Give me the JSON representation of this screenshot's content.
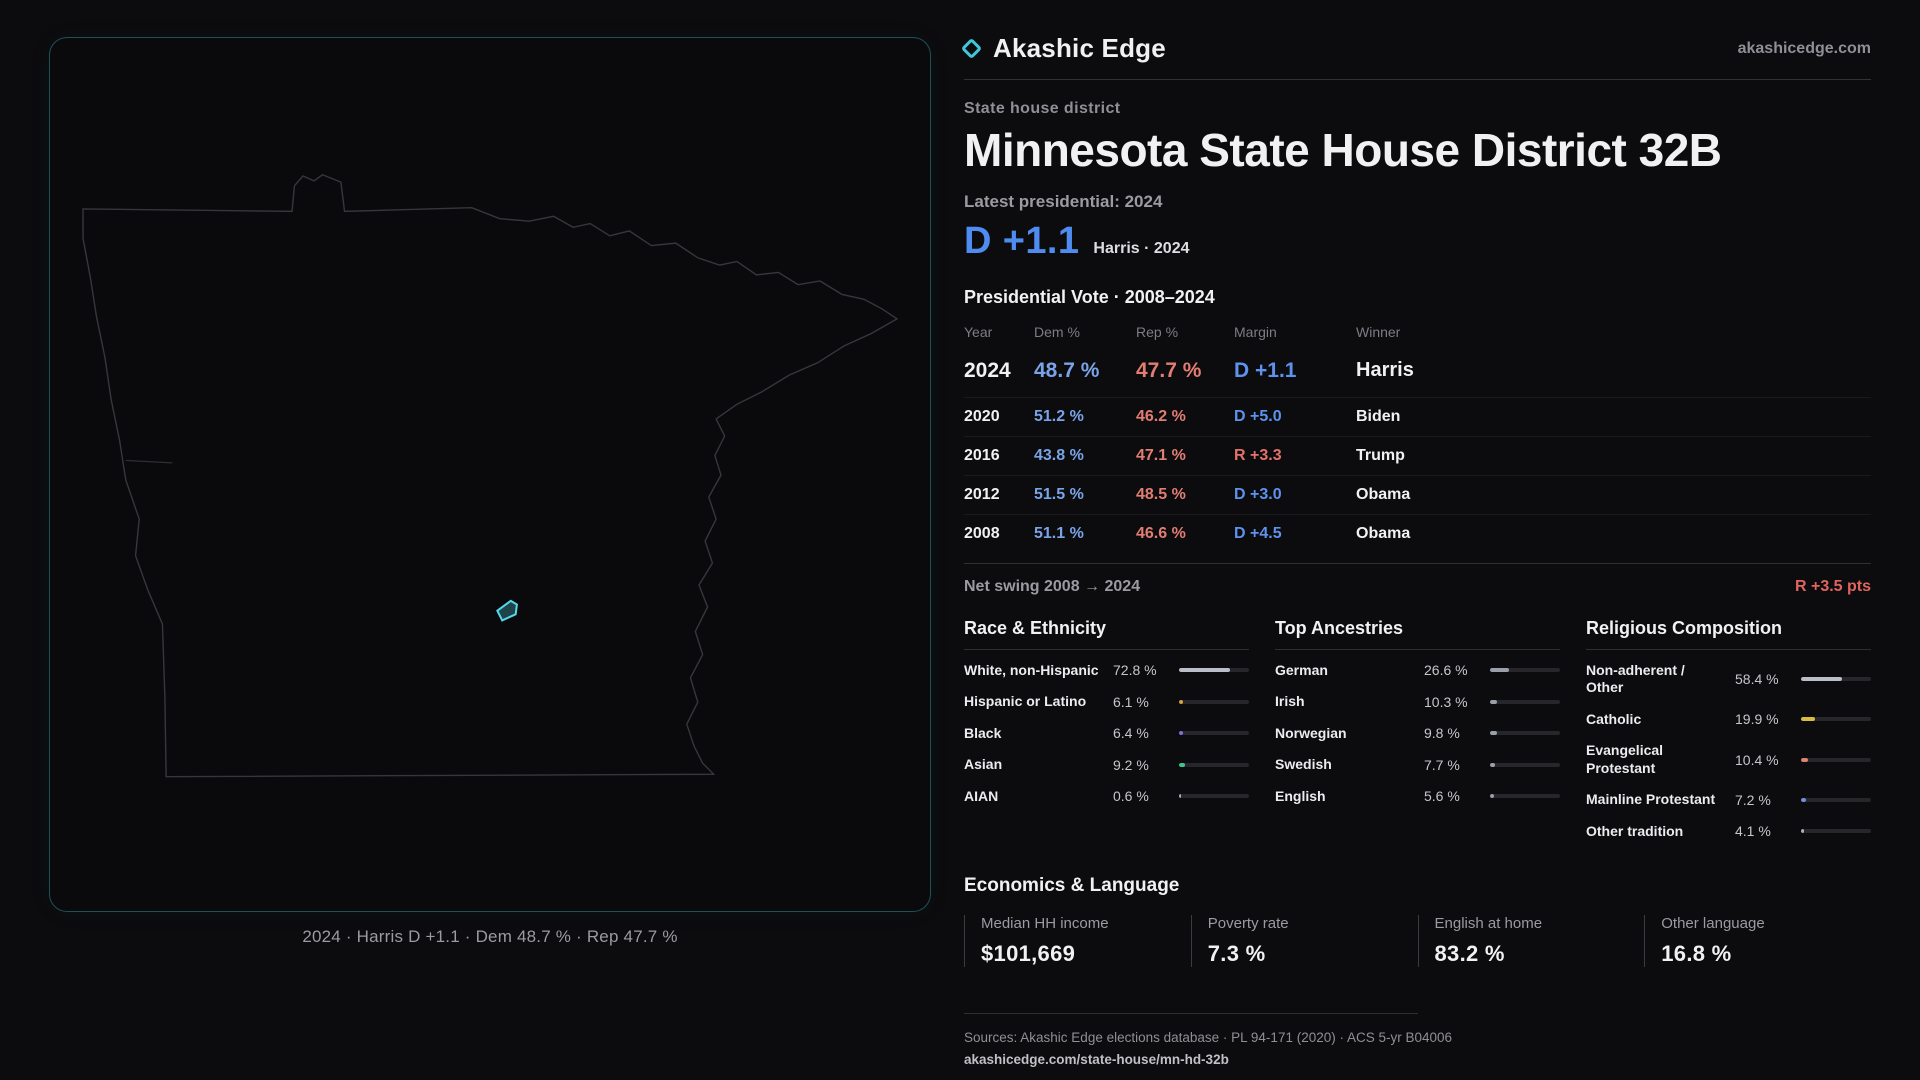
{
  "colors": {
    "background": "#0c0b0d",
    "dem_blue": "#5d93ee",
    "rep_red": "#e2726b",
    "accent_teal": "#3fc6da"
  },
  "map": {
    "caption": "2024 · Harris D +1.1 · Dem 48.7 % · Rep 47.7 %"
  },
  "header": {
    "brand": "Akashic Edge",
    "site": "akashicedge.com",
    "kicker": "State house district",
    "title": "Minnesota State House District 32B",
    "latest": "Latest presidential: 2024",
    "margin_value": "D +1.1",
    "margin_sub": "Harris · 2024"
  },
  "vote": {
    "title": "Presidential Vote · 2008–2024",
    "columns": [
      "Year",
      "Dem %",
      "Rep %",
      "Margin",
      "Winner"
    ],
    "rows": [
      {
        "year": "2024",
        "dem": "48.7 %",
        "rep": "47.7 %",
        "margin": "D +1.1",
        "party": "D",
        "winner": "Harris",
        "big": true
      },
      {
        "year": "2020",
        "dem": "51.2 %",
        "rep": "46.2 %",
        "margin": "D +5.0",
        "party": "D",
        "winner": "Biden"
      },
      {
        "year": "2016",
        "dem": "43.8 %",
        "rep": "47.1 %",
        "margin": "R +3.3",
        "party": "R",
        "winner": "Trump"
      },
      {
        "year": "2012",
        "dem": "51.5 %",
        "rep": "48.5 %",
        "margin": "D +3.0",
        "party": "D",
        "winner": "Obama"
      },
      {
        "year": "2008",
        "dem": "51.1 %",
        "rep": "46.6 %",
        "margin": "D +4.5",
        "party": "D",
        "winner": "Obama"
      }
    ],
    "swing_label": "Net swing 2008 → 2024",
    "swing_value": "R +3.5 pts"
  },
  "demo": {
    "race": {
      "title": "Race & Ethnicity",
      "items": [
        {
          "label": "White, non-Hispanic",
          "value": "72.8 %",
          "pct": 72.8,
          "color": "#b9bec7"
        },
        {
          "label": "Hispanic or Latino",
          "value": "6.1 %",
          "pct": 6.1,
          "color": "#d9a23f"
        },
        {
          "label": "Black",
          "value": "6.4 %",
          "pct": 6.4,
          "color": "#7b72dd"
        },
        {
          "label": "Asian",
          "value": "9.2 %",
          "pct": 9.2,
          "color": "#3ec48e"
        },
        {
          "label": "AIAN",
          "value": "0.6 %",
          "pct": 0.6,
          "color": "#aab0b8"
        }
      ]
    },
    "ancestry": {
      "title": "Top Ancestries",
      "items": [
        {
          "label": "German",
          "value": "26.6 %",
          "pct": 26.6,
          "color": "#9aa0a9"
        },
        {
          "label": "Irish",
          "value": "10.3 %",
          "pct": 10.3,
          "color": "#9aa0a9"
        },
        {
          "label": "Norwegian",
          "value": "9.8 %",
          "pct": 9.8,
          "color": "#9aa0a9"
        },
        {
          "label": "Swedish",
          "value": "7.7 %",
          "pct": 7.7,
          "color": "#9aa0a9"
        },
        {
          "label": "English",
          "value": "5.6 %",
          "pct": 5.6,
          "color": "#9aa0a9"
        }
      ]
    },
    "religion": {
      "title": "Religious Composition",
      "items": [
        {
          "label": "Non-adherent / Other",
          "value": "58.4 %",
          "pct": 58.4,
          "color": "#b9bec7"
        },
        {
          "label": "Catholic",
          "value": "19.9 %",
          "pct": 19.9,
          "color": "#d9bd3f"
        },
        {
          "label": "Evangelical Protestant",
          "value": "10.4 %",
          "pct": 10.4,
          "color": "#dd8072"
        },
        {
          "label": "Mainline Protestant",
          "value": "7.2 %",
          "pct": 7.2,
          "color": "#6f8fdd"
        },
        {
          "label": "Other tradition",
          "value": "4.1 %",
          "pct": 4.1,
          "color": "#aab0b8"
        }
      ]
    }
  },
  "econ": {
    "title": "Economics & Language",
    "stats": [
      {
        "label": "Median HH income",
        "value": "$101,669"
      },
      {
        "label": "Poverty rate",
        "value": "7.3 %"
      },
      {
        "label": "English at home",
        "value": "83.2 %"
      },
      {
        "label": "Other language",
        "value": "16.8 %"
      }
    ]
  },
  "footer": {
    "sources": "Sources: Akashic Edge elections database · PL 94-171 (2020) · ACS 5-yr B04006",
    "url": "akashicedge.com/state-house/mn-hd-32b"
  },
  "chart_data": [
    {
      "type": "table",
      "title": "Presidential Vote · 2008–2024",
      "columns": [
        "Year",
        "Dem %",
        "Rep %",
        "Margin",
        "Winner"
      ],
      "rows": [
        [
          2024,
          48.7,
          47.7,
          "D +1.1",
          "Harris"
        ],
        [
          2020,
          51.2,
          46.2,
          "D +5.0",
          "Biden"
        ],
        [
          2016,
          43.8,
          47.1,
          "R +3.3",
          "Trump"
        ],
        [
          2012,
          51.5,
          48.5,
          "D +3.0",
          "Obama"
        ],
        [
          2008,
          51.1,
          46.6,
          "D +4.5",
          "Obama"
        ]
      ],
      "note": "Net swing 2008 → 2024: R +3.5 pts"
    },
    {
      "type": "bar",
      "title": "Race & Ethnicity",
      "unit": "%",
      "categories": [
        "White, non-Hispanic",
        "Hispanic or Latino",
        "Black",
        "Asian",
        "AIAN"
      ],
      "values": [
        72.8,
        6.1,
        6.4,
        9.2,
        0.6
      ],
      "xlim": [
        0,
        100
      ]
    },
    {
      "type": "bar",
      "title": "Top Ancestries",
      "unit": "%",
      "categories": [
        "German",
        "Irish",
        "Norwegian",
        "Swedish",
        "English"
      ],
      "values": [
        26.6,
        10.3,
        9.8,
        7.7,
        5.6
      ],
      "xlim": [
        0,
        100
      ]
    },
    {
      "type": "bar",
      "title": "Religious Composition",
      "unit": "%",
      "categories": [
        "Non-adherent / Other",
        "Catholic",
        "Evangelical Protestant",
        "Mainline Protestant",
        "Other tradition"
      ],
      "values": [
        58.4,
        19.9,
        10.4,
        7.2,
        4.1
      ],
      "xlim": [
        0,
        100
      ]
    },
    {
      "type": "table",
      "title": "Economics & Language",
      "columns": [
        "Median HH income",
        "Poverty rate",
        "English at home",
        "Other language"
      ],
      "rows": [
        [
          "$101,669",
          "7.3 %",
          "83.2 %",
          "16.8 %"
        ]
      ]
    }
  ]
}
